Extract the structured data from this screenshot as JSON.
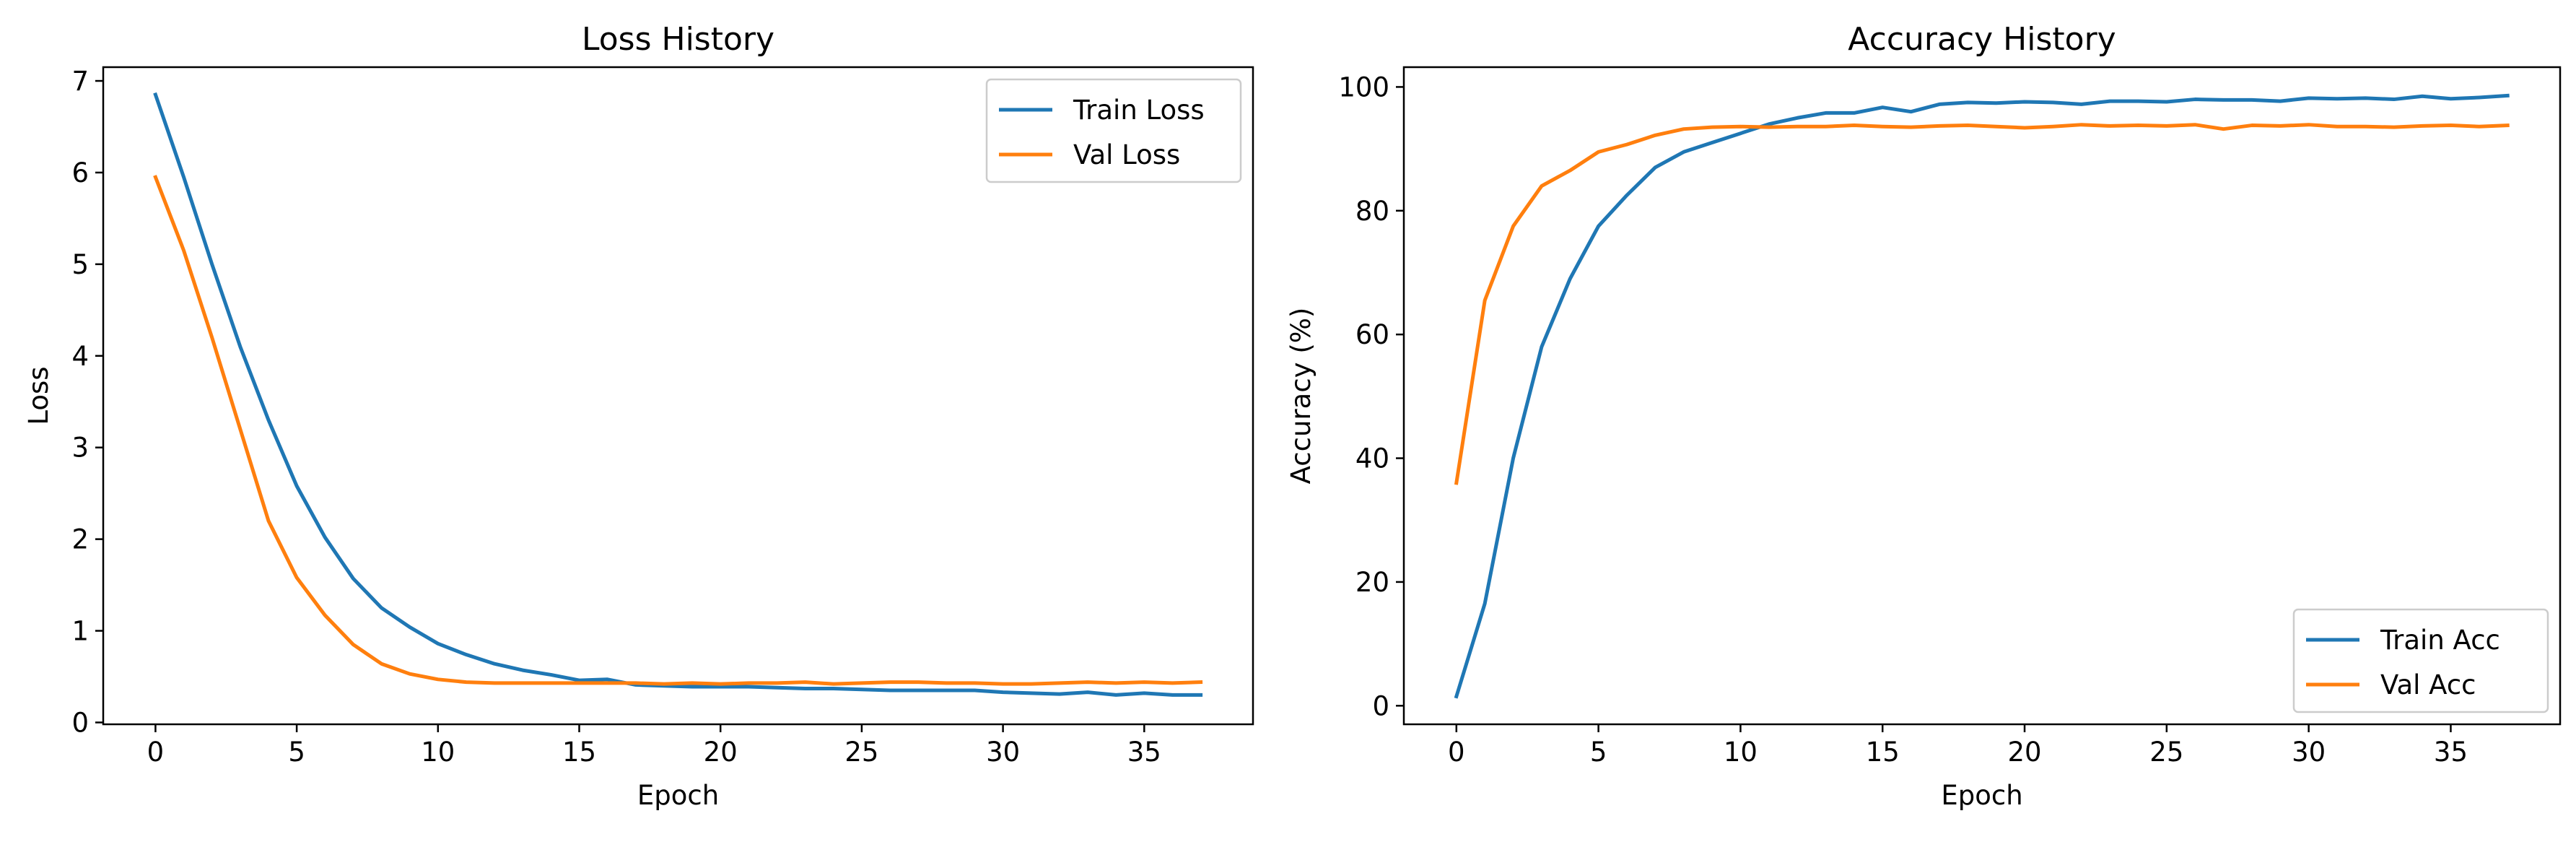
{
  "chart_data": [
    {
      "type": "line",
      "title": "Loss History",
      "xlabel": "Epoch",
      "ylabel": "Loss",
      "xlim": [
        -1.85,
        38.85
      ],
      "ylim": [
        -0.02,
        7.15
      ],
      "xticks": [
        0,
        5,
        10,
        15,
        20,
        25,
        30,
        35
      ],
      "yticks": [
        0,
        1,
        2,
        3,
        4,
        5,
        6,
        7
      ],
      "grid": false,
      "legend_position": "top-right",
      "x": [
        0,
        1,
        2,
        3,
        4,
        5,
        6,
        7,
        8,
        9,
        10,
        11,
        12,
        13,
        14,
        15,
        16,
        17,
        18,
        19,
        20,
        21,
        22,
        23,
        24,
        25,
        26,
        27,
        28,
        29,
        30,
        31,
        32,
        33,
        34,
        35,
        36,
        37
      ],
      "series": [
        {
          "name": "Train Loss",
          "color": "#1f77b4",
          "values": [
            6.85,
            5.95,
            5.0,
            4.1,
            3.3,
            2.58,
            2.02,
            1.57,
            1.25,
            1.04,
            0.86,
            0.74,
            0.64,
            0.57,
            0.52,
            0.46,
            0.47,
            0.41,
            0.4,
            0.39,
            0.39,
            0.39,
            0.38,
            0.37,
            0.37,
            0.36,
            0.35,
            0.35,
            0.35,
            0.35,
            0.33,
            0.32,
            0.31,
            0.33,
            0.3,
            0.32,
            0.3,
            0.3
          ]
        },
        {
          "name": "Val Loss",
          "color": "#ff7f0e",
          "values": [
            5.95,
            5.15,
            4.2,
            3.2,
            2.2,
            1.58,
            1.17,
            0.85,
            0.64,
            0.53,
            0.47,
            0.44,
            0.43,
            0.43,
            0.43,
            0.43,
            0.43,
            0.43,
            0.42,
            0.43,
            0.42,
            0.43,
            0.43,
            0.44,
            0.42,
            0.43,
            0.44,
            0.44,
            0.43,
            0.43,
            0.42,
            0.42,
            0.43,
            0.44,
            0.43,
            0.44,
            0.43,
            0.44
          ]
        }
      ]
    },
    {
      "type": "line",
      "title": "Accuracy History",
      "xlabel": "Epoch",
      "ylabel": "Accuracy (%)",
      "xlim": [
        -1.85,
        38.85
      ],
      "ylim": [
        -3.0,
        103.2
      ],
      "xticks": [
        0,
        5,
        10,
        15,
        20,
        25,
        30,
        35
      ],
      "yticks": [
        0,
        20,
        40,
        60,
        80,
        100
      ],
      "grid": false,
      "legend_position": "bottom-right",
      "x": [
        0,
        1,
        2,
        3,
        4,
        5,
        6,
        7,
        8,
        9,
        10,
        11,
        12,
        13,
        14,
        15,
        16,
        17,
        18,
        19,
        20,
        21,
        22,
        23,
        24,
        25,
        26,
        27,
        28,
        29,
        30,
        31,
        32,
        33,
        34,
        35,
        36,
        37
      ],
      "series": [
        {
          "name": "Train Acc",
          "color": "#1f77b4",
          "values": [
            1.5,
            16.5,
            40,
            58,
            69,
            77.5,
            82.5,
            87,
            89.5,
            91,
            92.5,
            94,
            95,
            95.8,
            95.8,
            96.7,
            96,
            97.2,
            97.5,
            97.4,
            97.6,
            97.5,
            97.2,
            97.7,
            97.7,
            97.6,
            98,
            97.9,
            97.9,
            97.7,
            98.2,
            98.1,
            98.2,
            98.0,
            98.5,
            98.1,
            98.3,
            98.6
          ]
        },
        {
          "name": "Val Acc",
          "color": "#ff7f0e",
          "values": [
            36,
            65.5,
            77.5,
            84,
            86.5,
            89.5,
            90.7,
            92.2,
            93.2,
            93.5,
            93.6,
            93.5,
            93.6,
            93.6,
            93.8,
            93.6,
            93.5,
            93.7,
            93.8,
            93.6,
            93.4,
            93.6,
            93.9,
            93.7,
            93.8,
            93.7,
            93.9,
            93.2,
            93.8,
            93.7,
            93.9,
            93.6,
            93.6,
            93.5,
            93.7,
            93.8,
            93.6,
            93.8
          ]
        }
      ]
    }
  ]
}
